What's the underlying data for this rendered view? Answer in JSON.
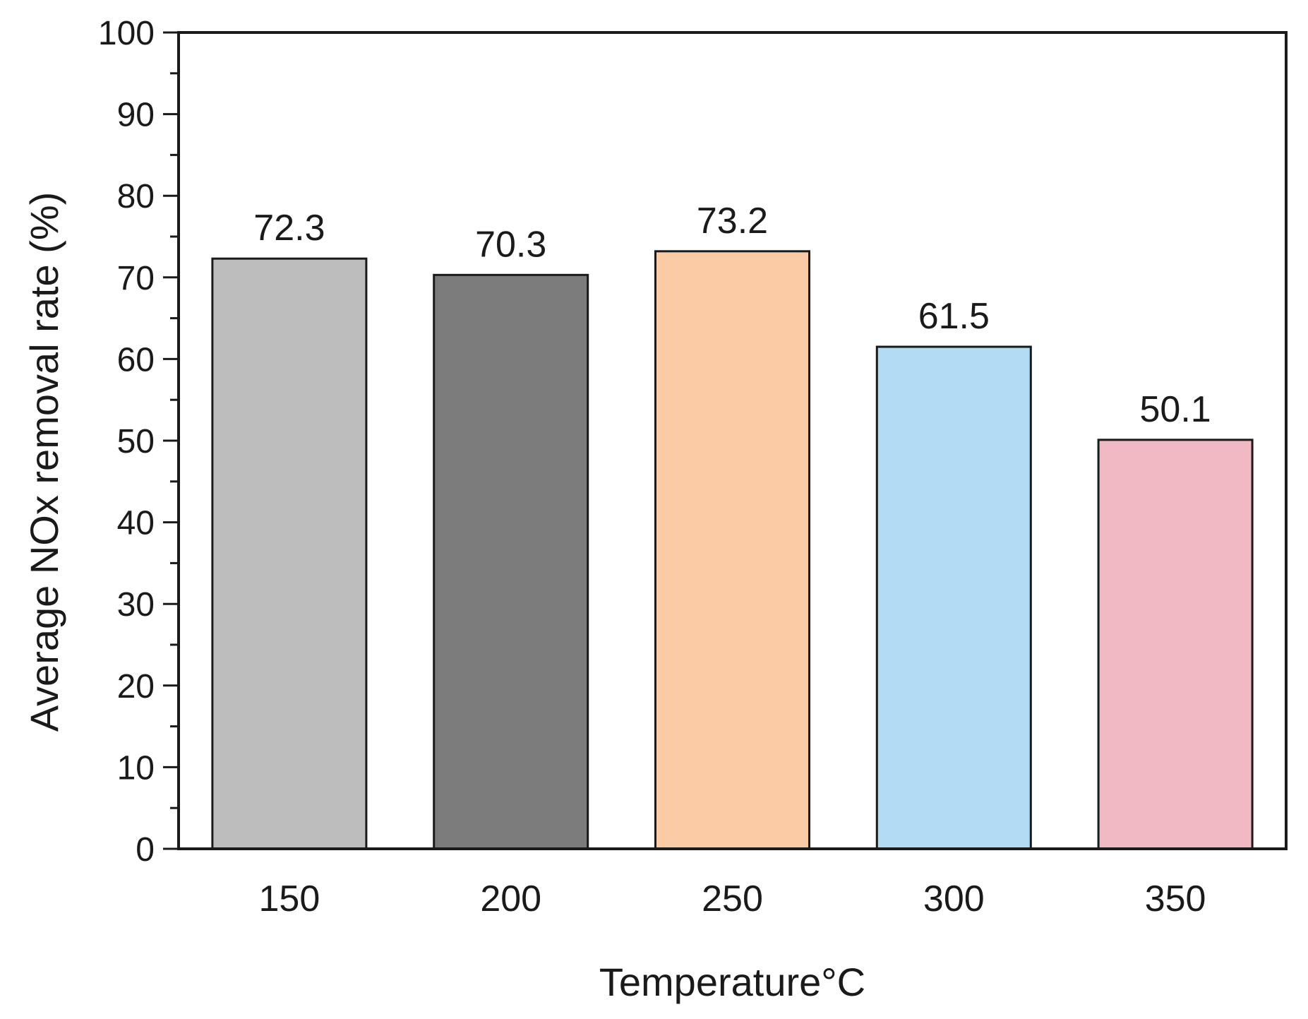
{
  "chart_data": {
    "type": "bar",
    "categories": [
      "150",
      "200",
      "250",
      "300",
      "350"
    ],
    "values": [
      72.3,
      70.3,
      73.2,
      61.5,
      50.1
    ],
    "value_labels": [
      "72.3",
      "70.3",
      "73.2",
      "61.5",
      "50.1"
    ],
    "colors": [
      "#bdbdbd",
      "#7c7c7c",
      "#fbcba6",
      "#b1dcf3",
      "#f0b9c4"
    ],
    "title": "",
    "xlabel": "Temperature°C",
    "ylabel": "Average NOx removal rate (%)",
    "ylim": [
      0,
      100
    ],
    "yticks": [
      0,
      10,
      20,
      30,
      40,
      50,
      60,
      70,
      80,
      90,
      100
    ],
    "ytick_labels": [
      "0",
      "10",
      "20",
      "30",
      "40",
      "50",
      "60",
      "70",
      "80",
      "90",
      "100"
    ],
    "grid": false,
    "legend": "none"
  }
}
